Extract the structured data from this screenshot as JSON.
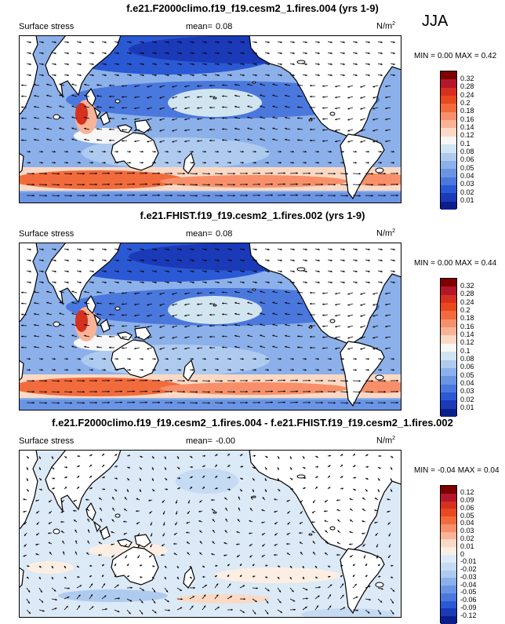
{
  "season_label": "JJA",
  "chart_data": [
    {
      "type": "heatmap",
      "title": "f.e21.F2000climo.f19_f19.cesm2_1.fires.004 (yrs 1-9)",
      "variable_label": "Surface stress",
      "mean_label": "mean=",
      "mean_value": "0.08",
      "units_base": "N/m",
      "units_exp": "2",
      "min_label": "MIN =",
      "min_value": "0.00",
      "max_label": "MAX =",
      "max_value": "0.42",
      "colorbar_levels": [
        "0.32",
        "0.28",
        "0.24",
        "0.2",
        "0.18",
        "0.16",
        "0.14",
        "0.12",
        "0.1",
        "0.08",
        "0.06",
        "0.05",
        "0.04",
        "0.03",
        "0.02",
        "0.01"
      ],
      "colorbar_colors": [
        "#7f0000",
        "#b2182b",
        "#d6301f",
        "#e8491f",
        "#f26b3d",
        "#f7906a",
        "#f9b497",
        "#fcd9c4",
        "#f7f7f7",
        "#d1e5f0",
        "#aecbef",
        "#8cb0ea",
        "#6a95e4",
        "#4a78dd",
        "#2b59d4",
        "#1a3ab8",
        "#0a1f8a"
      ]
    },
    {
      "type": "heatmap",
      "title": "f.e21.FHIST.f19_f19.cesm2_1.fires.002 (yrs 1-9)",
      "variable_label": "Surface stress",
      "mean_label": "mean=",
      "mean_value": "0.08",
      "units_base": "N/m",
      "units_exp": "2",
      "min_label": "MIN =",
      "min_value": "0.00",
      "max_label": "MAX =",
      "max_value": "0.44",
      "colorbar_levels": [
        "0.32",
        "0.28",
        "0.24",
        "0.2",
        "0.18",
        "0.16",
        "0.14",
        "0.12",
        "0.1",
        "0.08",
        "0.06",
        "0.05",
        "0.04",
        "0.03",
        "0.02",
        "0.01"
      ],
      "colorbar_colors": [
        "#7f0000",
        "#b2182b",
        "#d6301f",
        "#e8491f",
        "#f26b3d",
        "#f7906a",
        "#f9b497",
        "#fcd9c4",
        "#f7f7f7",
        "#d1e5f0",
        "#aecbef",
        "#8cb0ea",
        "#6a95e4",
        "#4a78dd",
        "#2b59d4",
        "#1a3ab8",
        "#0a1f8a"
      ]
    },
    {
      "type": "heatmap",
      "title": "f.e21.F2000climo.f19_f19.cesm2_1.fires.004 - f.e21.FHIST.f19_f19.cesm2_1.fires.002",
      "variable_label": "Surface stress",
      "mean_label": "mean=",
      "mean_value": "-0.00",
      "units_base": "N/m",
      "units_exp": "2",
      "min_label": "MIN =",
      "min_value": "-0.04",
      "max_label": "MAX =",
      "max_value": "0.04",
      "colorbar_levels": [
        "0.12",
        "0.09",
        "0.06",
        "0.05",
        "0.04",
        "0.03",
        "0.02",
        "0.01",
        "0",
        "-0.01",
        "-0.02",
        "-0.03",
        "-0.04",
        "-0.05",
        "-0.06",
        "-0.09",
        "-0.12"
      ],
      "colorbar_colors": [
        "#7f0000",
        "#b2182b",
        "#d6301f",
        "#e8491f",
        "#f26b3d",
        "#f7906a",
        "#f9b497",
        "#fcd9c4",
        "#fdeee4",
        "#dce9f6",
        "#c5daf3",
        "#aecbef",
        "#8cb0ea",
        "#6a95e4",
        "#4a78dd",
        "#2b59d4",
        "#1a3ab8",
        "#0a1f8a"
      ]
    }
  ]
}
